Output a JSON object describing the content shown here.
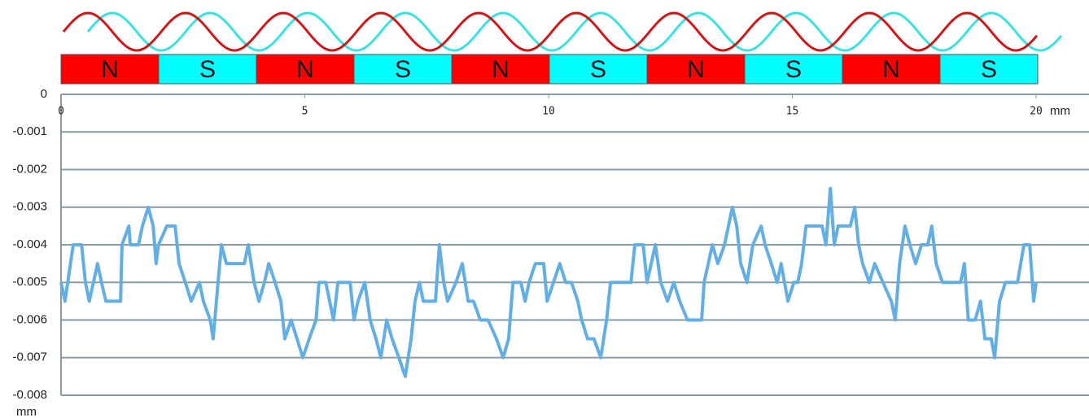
{
  "magnet_strip": [
    {
      "label": "N",
      "color": "#ff0000"
    },
    {
      "label": "S",
      "color": "#00ffff"
    },
    {
      "label": "N",
      "color": "#ff0000"
    },
    {
      "label": "S",
      "color": "#00ffff"
    },
    {
      "label": "N",
      "color": "#ff0000"
    },
    {
      "label": "S",
      "color": "#00ffff"
    },
    {
      "label": "N",
      "color": "#ff0000"
    },
    {
      "label": "S",
      "color": "#00ffff"
    },
    {
      "label": "N",
      "color": "#ff0000"
    },
    {
      "label": "S",
      "color": "#00ffff"
    }
  ],
  "chart_data": {
    "type": "line",
    "x_label": "mm",
    "y_label": "mm",
    "xlim": [
      0,
      20
    ],
    "xticks": [
      0,
      5,
      10,
      15,
      20
    ],
    "ylim": [
      -0.008,
      0
    ],
    "yticks": [
      0,
      -0.001,
      -0.002,
      -0.003,
      -0.004,
      -0.005,
      -0.006,
      -0.007,
      -0.008
    ],
    "grid": true,
    "series": [
      {
        "color": "#63aee3",
        "x": [
          0,
          0.08,
          0.25,
          0.42,
          0.5,
          0.58,
          0.75,
          0.83,
          0.92,
          1.22,
          1.25,
          1.39,
          1.42,
          1.59,
          1.67,
          1.79,
          1.89,
          1.95,
          2.0,
          2.17,
          2.34,
          2.42,
          2.55,
          2.67,
          2.84,
          2.92,
          3.06,
          3.12,
          3.22,
          3.29,
          3.39,
          3.76,
          3.84,
          3.96,
          4.06,
          4.17,
          4.26,
          4.39,
          4.51,
          4.59,
          4.72,
          4.84,
          4.96,
          5.09,
          5.23,
          5.29,
          5.43,
          5.51,
          5.59,
          5.68,
          5.93,
          6.01,
          6.09,
          6.23,
          6.34,
          6.46,
          6.56,
          6.68,
          6.79,
          6.93,
          7.06,
          7.18,
          7.26,
          7.35,
          7.43,
          7.68,
          7.76,
          7.85,
          7.93,
          8.1,
          8.23,
          8.35,
          8.46,
          8.6,
          8.76,
          8.93,
          9.07,
          9.18,
          9.27,
          9.43,
          9.52,
          9.6,
          9.73,
          9.9,
          9.97,
          10.1,
          10.23,
          10.35,
          10.47,
          10.6,
          10.68,
          10.8,
          10.93,
          11.07,
          11.19,
          11.27,
          11.69,
          11.77,
          11.94,
          12.02,
          12.19,
          12.3,
          12.44,
          12.57,
          12.69,
          12.85,
          13.14,
          13.19,
          13.36,
          13.47,
          13.61,
          13.69,
          13.77,
          13.86,
          13.94,
          14.07,
          14.19,
          14.36,
          14.44,
          14.57,
          14.69,
          14.77,
          14.91,
          15.03,
          15.11,
          15.19,
          15.28,
          15.61,
          15.69,
          15.78,
          15.86,
          15.94,
          16.19,
          16.28,
          16.36,
          16.44,
          16.58,
          16.69,
          16.86,
          17.03,
          17.11,
          17.2,
          17.31,
          17.41,
          17.53,
          17.65,
          17.78,
          17.86,
          17.95,
          18.08,
          18.45,
          18.53,
          18.61,
          18.75,
          18.86,
          18.95,
          19.08,
          19.15,
          19.25,
          19.37,
          19.62,
          19.75,
          19.87,
          19.95,
          20
        ],
        "values": [
          -0.005,
          -0.0055,
          -0.004,
          -0.004,
          -0.005,
          -0.0055,
          -0.0045,
          -0.005,
          -0.0055,
          -0.0055,
          -0.004,
          -0.0035,
          -0.004,
          -0.004,
          -0.0035,
          -0.003,
          -0.0035,
          -0.0045,
          -0.004,
          -0.0035,
          -0.0035,
          -0.0045,
          -0.005,
          -0.0055,
          -0.005,
          -0.0055,
          -0.006,
          -0.0065,
          -0.005,
          -0.004,
          -0.0045,
          -0.0045,
          -0.004,
          -0.005,
          -0.0055,
          -0.005,
          -0.0045,
          -0.005,
          -0.0055,
          -0.0065,
          -0.006,
          -0.0065,
          -0.007,
          -0.0065,
          -0.006,
          -0.005,
          -0.005,
          -0.0055,
          -0.006,
          -0.005,
          -0.005,
          -0.006,
          -0.0055,
          -0.005,
          -0.006,
          -0.0065,
          -0.007,
          -0.006,
          -0.0065,
          -0.007,
          -0.0075,
          -0.0065,
          -0.0055,
          -0.005,
          -0.0055,
          -0.0055,
          -0.004,
          -0.005,
          -0.0055,
          -0.005,
          -0.0045,
          -0.0055,
          -0.0055,
          -0.006,
          -0.006,
          -0.0065,
          -0.007,
          -0.0065,
          -0.005,
          -0.005,
          -0.0055,
          -0.005,
          -0.0045,
          -0.0045,
          -0.0055,
          -0.005,
          -0.0045,
          -0.005,
          -0.005,
          -0.0055,
          -0.006,
          -0.0065,
          -0.0065,
          -0.007,
          -0.006,
          -0.005,
          -0.005,
          -0.004,
          -0.004,
          -0.005,
          -0.004,
          -0.005,
          -0.0055,
          -0.005,
          -0.0055,
          -0.006,
          -0.006,
          -0.005,
          -0.004,
          -0.0045,
          -0.004,
          -0.0035,
          -0.003,
          -0.0035,
          -0.0045,
          -0.005,
          -0.004,
          -0.0035,
          -0.004,
          -0.0045,
          -0.005,
          -0.0045,
          -0.0055,
          -0.005,
          -0.005,
          -0.0045,
          -0.0035,
          -0.0035,
          -0.004,
          -0.0025,
          -0.004,
          -0.0035,
          -0.0035,
          -0.003,
          -0.004,
          -0.0045,
          -0.005,
          -0.0045,
          -0.005,
          -0.0055,
          -0.006,
          -0.0045,
          -0.0035,
          -0.004,
          -0.0045,
          -0.004,
          -0.004,
          -0.0035,
          -0.0045,
          -0.005,
          -0.005,
          -0.0045,
          -0.006,
          -0.006,
          -0.0055,
          -0.0065,
          -0.0065,
          -0.007,
          -0.0055,
          -0.005,
          -0.005,
          -0.004,
          -0.004,
          -0.0055,
          -0.005
        ]
      }
    ]
  }
}
